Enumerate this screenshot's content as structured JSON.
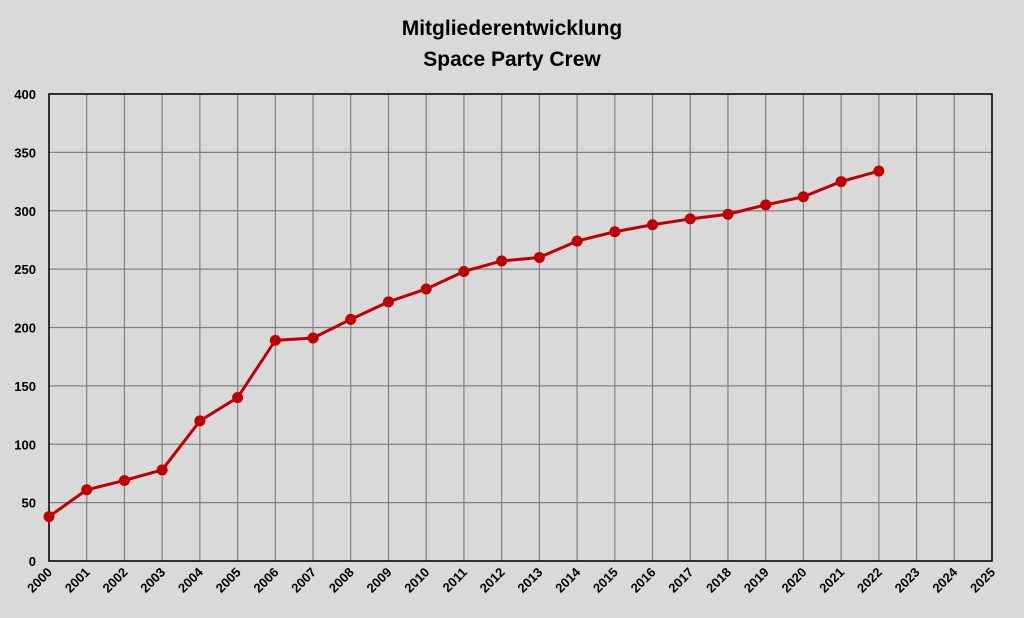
{
  "chart_data": {
    "type": "line",
    "title": "Mitgliederentwicklung",
    "subtitle": "Space Party Crew",
    "xlabel": "",
    "ylabel": "",
    "ylim": [
      0,
      400
    ],
    "xlim": [
      2000,
      2025
    ],
    "grid": true,
    "y_ticks": [
      "0",
      "50",
      "100",
      "150",
      "200",
      "250",
      "300",
      "350",
      "400"
    ],
    "x_ticks": [
      "2000",
      "2001",
      "2002",
      "2003",
      "2004",
      "2005",
      "2006",
      "2007",
      "2008",
      "2009",
      "2010",
      "2011",
      "2012",
      "2013",
      "2014",
      "2015",
      "2016",
      "2017",
      "2018",
      "2019",
      "2020",
      "2021",
      "2022",
      "2023",
      "2024",
      "2025"
    ],
    "x": [
      2000,
      2001,
      2002,
      2003,
      2004,
      2005,
      2006,
      2007,
      2008,
      2009,
      2010,
      2011,
      2012,
      2013,
      2014,
      2015,
      2016,
      2017,
      2018,
      2019,
      2020,
      2021,
      2022
    ],
    "series": [
      {
        "values": [
          38,
          61,
          69,
          78,
          120,
          140,
          189,
          191,
          207,
          222,
          233,
          248,
          257,
          260,
          274,
          282,
          288,
          293,
          297,
          305,
          312,
          325,
          334
        ],
        "color": "#c00000"
      }
    ]
  }
}
